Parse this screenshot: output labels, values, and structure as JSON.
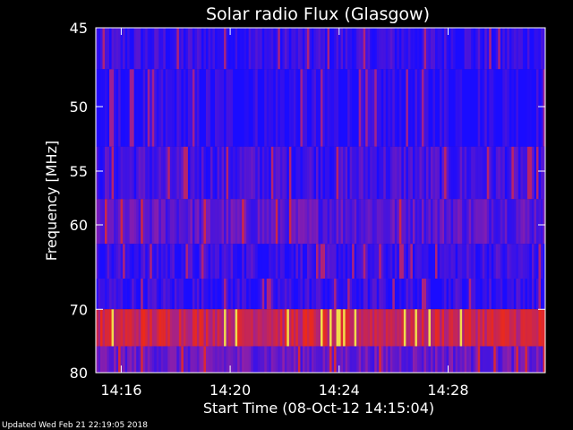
{
  "chart_data": {
    "type": "heatmap",
    "title": "Solar radio Flux (Glasgow)",
    "xlabel": "Start Time (08-Oct-12 14:15:04)",
    "ylabel": "Frequency [MHz]",
    "x_ticks": [
      "14:16",
      "14:20",
      "14:24",
      "14:28"
    ],
    "y_ticks": [
      "45",
      "50",
      "55",
      "60",
      "70",
      "80"
    ],
    "y_scale": "reciprocal",
    "ylim": [
      45,
      80
    ],
    "bands": [
      {
        "f_low": 45.0,
        "f_high": 47.5,
        "base": "#2a1fd6",
        "level": 0.1
      },
      {
        "f_low": 47.5,
        "f_high": 53.0,
        "base": "#1c10ff",
        "level": 0.05
      },
      {
        "f_low": 53.0,
        "f_high": 57.5,
        "base": "#3a1ae0",
        "level": 0.15
      },
      {
        "f_low": 57.5,
        "f_high": 62.0,
        "base": "#5a1aa6",
        "level": 0.25
      },
      {
        "f_low": 62.0,
        "f_high": 66.0,
        "base": "#2a14ee",
        "level": 0.12
      },
      {
        "f_low": 66.0,
        "f_high": 70.0,
        "base": "#3218d8",
        "level": 0.1
      },
      {
        "f_low": 70.0,
        "f_high": 75.5,
        "base": "#b01818",
        "level": 0.7
      },
      {
        "f_low": 75.5,
        "f_high": 80.0,
        "base": "#4a18a0",
        "level": 0.3
      }
    ],
    "grid": false,
    "colors": {
      "background": "#000000",
      "axes": "#ffffff",
      "low": "#1a0cff",
      "mid": "#a01818",
      "high": "#ffd040"
    }
  },
  "footer": {
    "updated": "Updated Wed Feb 21 22:19:05 2018"
  }
}
